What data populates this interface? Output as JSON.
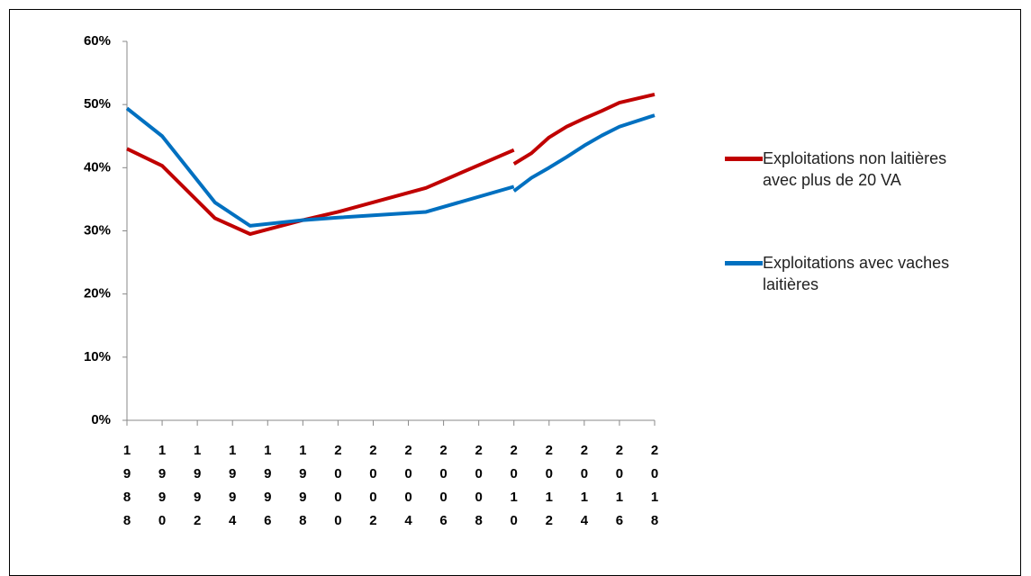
{
  "chart_data": {
    "type": "line",
    "x": [
      1988,
      1990,
      1993,
      1995,
      1998,
      2000,
      2005,
      2010,
      2010,
      2010,
      2011,
      2012,
      2013,
      2014,
      2015,
      2016,
      2018
    ],
    "series": [
      {
        "name": "Exploitations non laitières avec plus de 20 VA",
        "color": "#c00000",
        "values": [
          43.0,
          40.3,
          32.0,
          29.5,
          31.7,
          33.0,
          36.8,
          42.8,
          null,
          40.6,
          42.3,
          44.8,
          46.5,
          47.8,
          49.0,
          50.3,
          51.6
        ]
      },
      {
        "name": "Exploitations avec vaches laitières",
        "color": "#0070c0",
        "values": [
          49.4,
          45.0,
          34.5,
          30.8,
          31.7,
          32.1,
          33.0,
          37.0,
          null,
          36.3,
          38.4,
          40.0,
          41.7,
          43.5,
          45.1,
          46.5,
          48.3
        ]
      }
    ],
    "xlim": [
      1988,
      2018
    ],
    "xticks": [
      1988,
      1990,
      1992,
      1994,
      1996,
      1998,
      2000,
      2002,
      2004,
      2006,
      2008,
      2010,
      2012,
      2014,
      2016,
      2018
    ],
    "ylim": [
      0,
      60
    ],
    "yticks": [
      {
        "value": 0,
        "label": "0%"
      },
      {
        "value": 10,
        "label": "10%"
      },
      {
        "value": 20,
        "label": "20%"
      },
      {
        "value": 30,
        "label": "30%"
      },
      {
        "value": 40,
        "label": "40%"
      },
      {
        "value": 50,
        "label": "50%"
      },
      {
        "value": 60,
        "label": "60%"
      }
    ],
    "grid": false,
    "legend": "right"
  }
}
